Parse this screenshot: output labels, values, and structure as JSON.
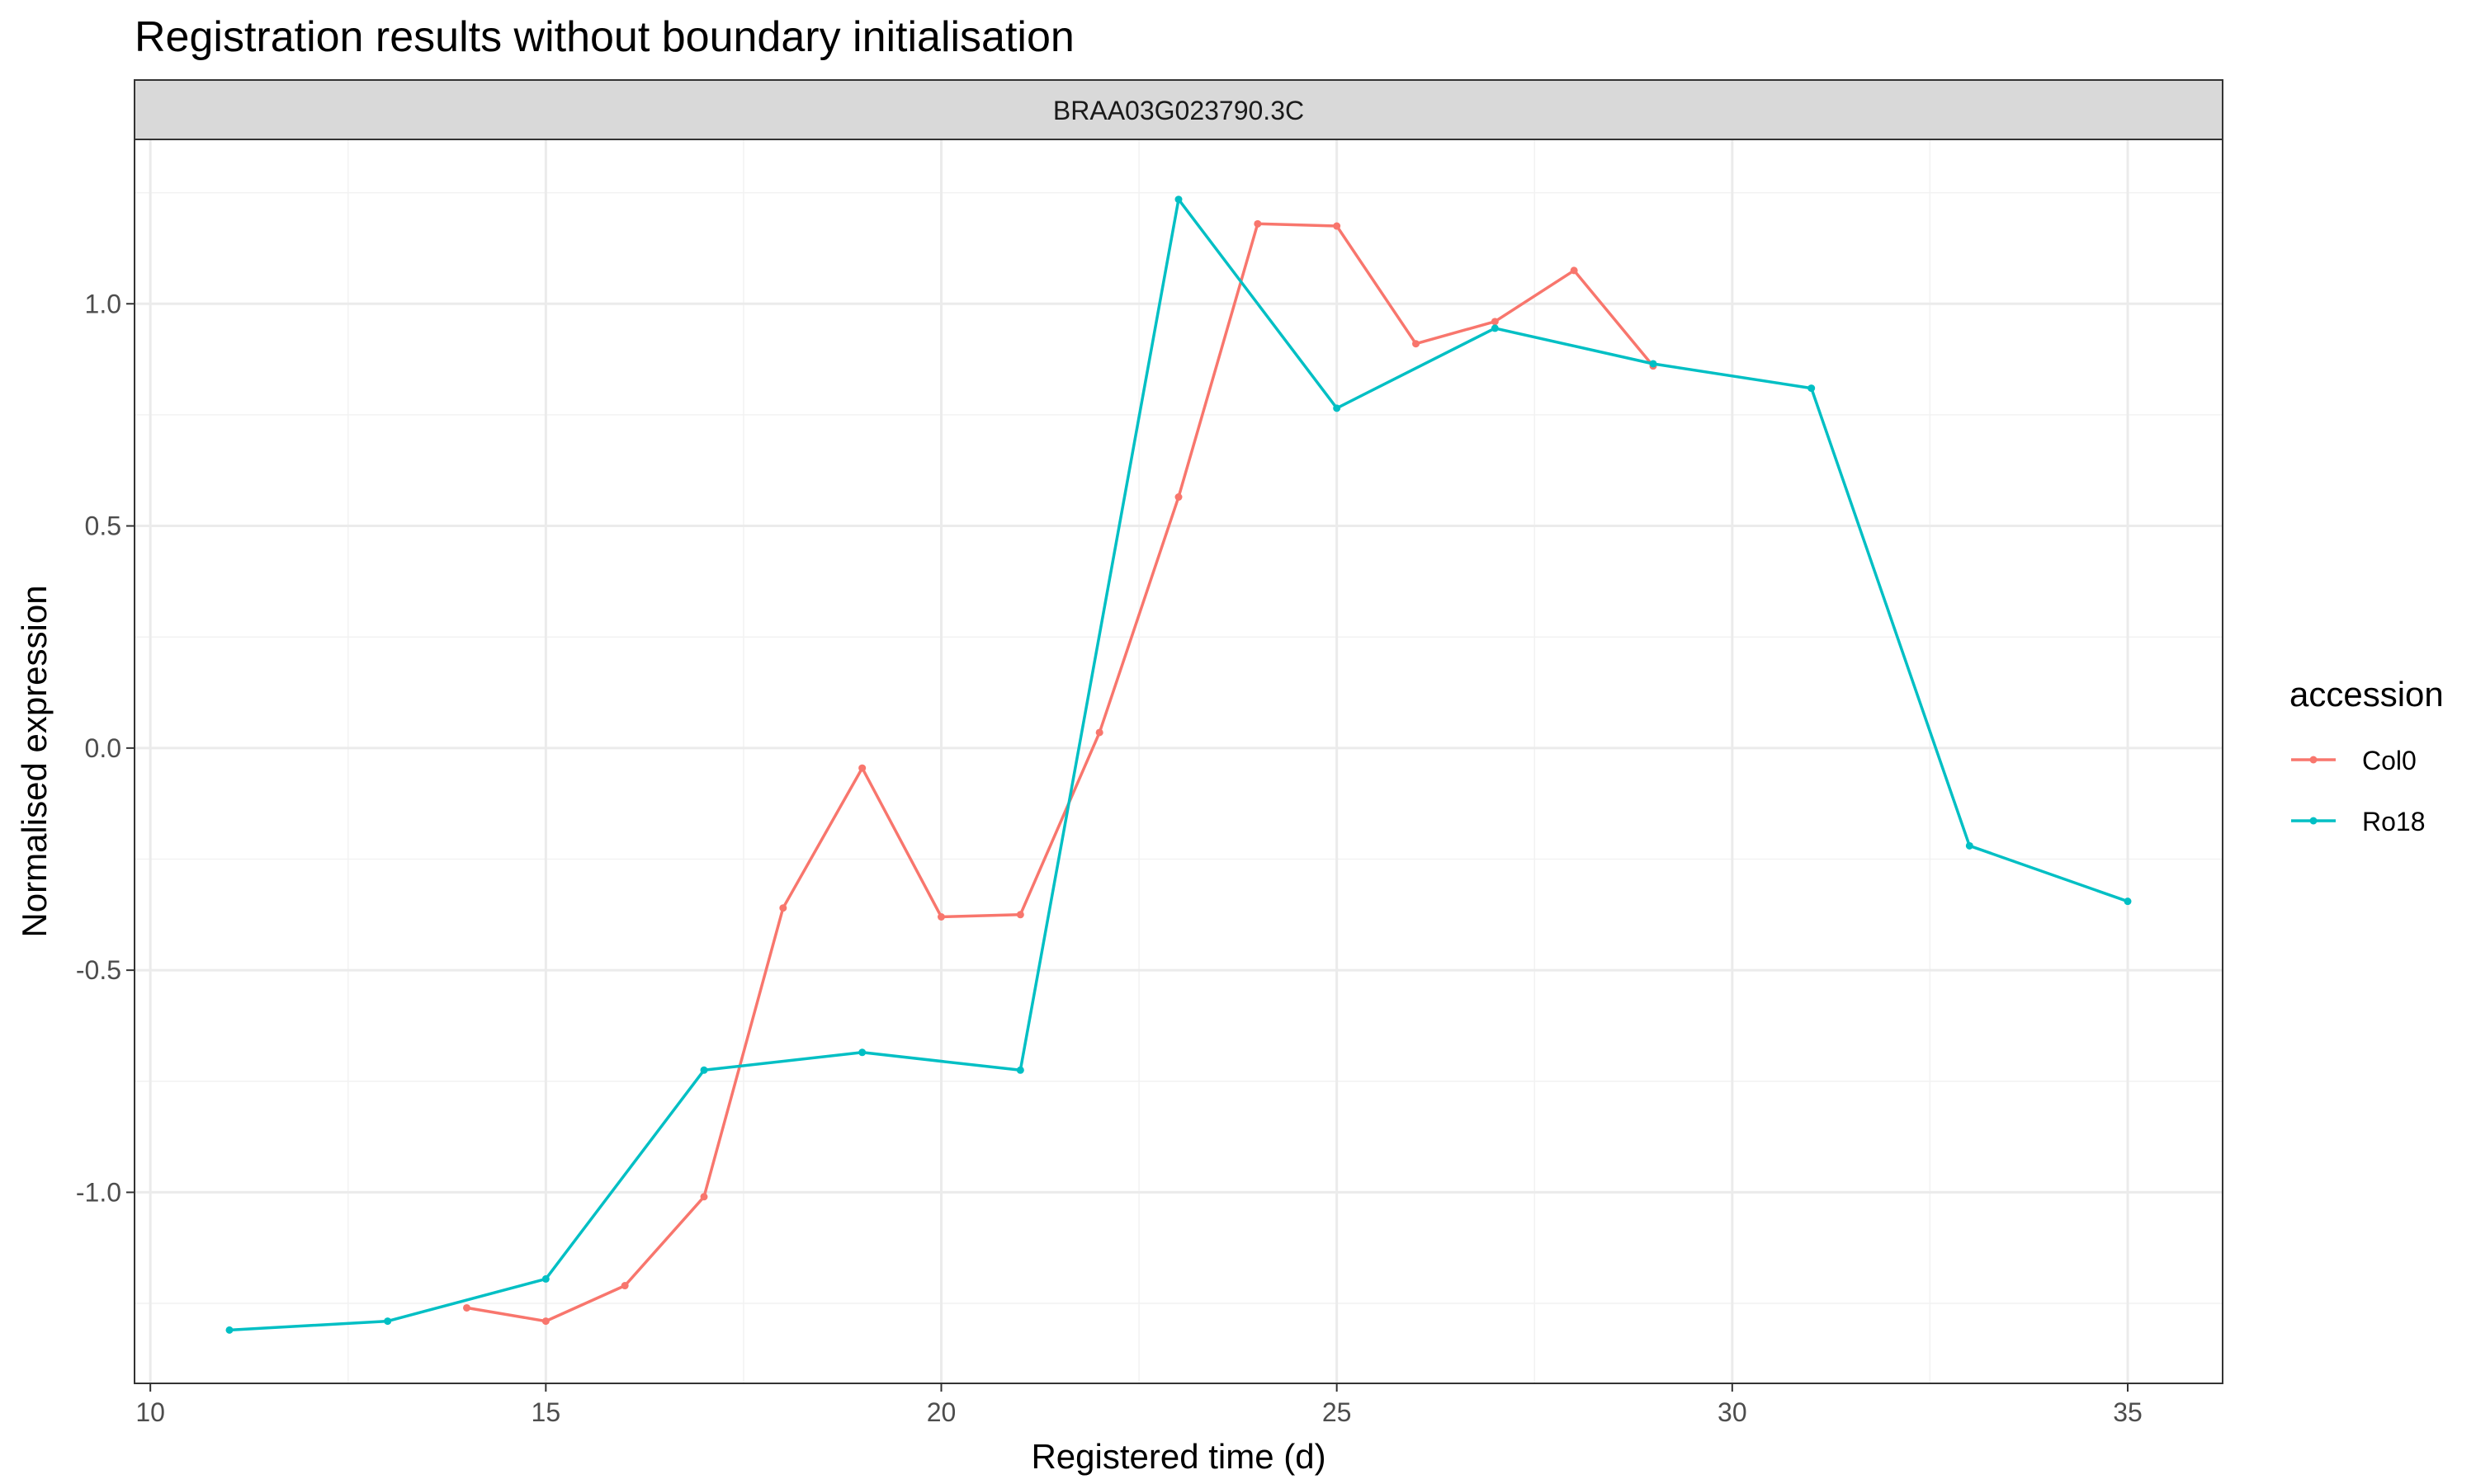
{
  "chart_data": {
    "type": "line",
    "title": "Registration results without boundary initialisation",
    "facet_label": "BRAA03G023790.3C",
    "xlabel": "Registered time (d)",
    "ylabel": "Normalised expression",
    "xlim": [
      9.8,
      36.2
    ],
    "ylim": [
      -1.43,
      1.37
    ],
    "x_ticks": [
      10,
      15,
      20,
      25,
      30,
      35
    ],
    "x_tick_labels": [
      "10",
      "15",
      "20",
      "25",
      "30",
      "35"
    ],
    "y_ticks": [
      -1.0,
      -0.5,
      0.0,
      0.5,
      1.0
    ],
    "y_tick_labels": [
      "-1.0",
      "-0.5",
      "0.0",
      "0.5",
      "1.0"
    ],
    "grid": true,
    "legend": {
      "title": "accession",
      "position": "right"
    },
    "series": [
      {
        "name": "Col0",
        "color": "#F8766D",
        "x": [
          14,
          15,
          16,
          17,
          18,
          19,
          20,
          21,
          22,
          23,
          24,
          25,
          26,
          27,
          28,
          29
        ],
        "y": [
          -1.26,
          -1.29,
          -1.21,
          -1.01,
          -0.36,
          -0.045,
          -0.38,
          -0.375,
          0.035,
          0.565,
          1.18,
          1.175,
          0.91,
          0.96,
          1.075,
          0.86
        ]
      },
      {
        "name": "Ro18",
        "color": "#00BFC4",
        "x": [
          11,
          13,
          15,
          17,
          19,
          21,
          23,
          25,
          27,
          29,
          31,
          33,
          35
        ],
        "y": [
          -1.31,
          -1.29,
          -1.195,
          -0.725,
          -0.685,
          -0.725,
          1.235,
          0.765,
          0.945,
          0.865,
          0.81,
          -0.22,
          -0.345
        ]
      }
    ]
  }
}
